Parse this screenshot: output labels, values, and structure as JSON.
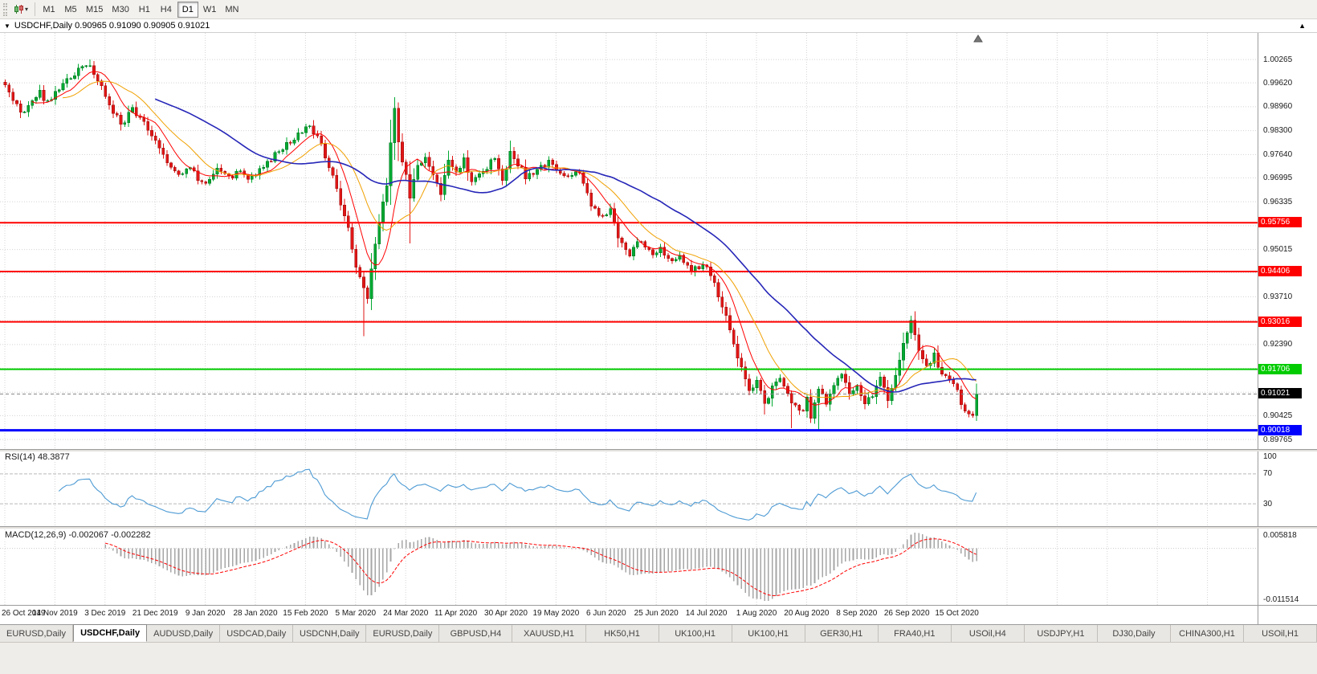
{
  "toolbar": {
    "timeframes": [
      {
        "label": "M1",
        "active": false
      },
      {
        "label": "M5",
        "active": false
      },
      {
        "label": "M15",
        "active": false
      },
      {
        "label": "M30",
        "active": false
      },
      {
        "label": "H1",
        "active": false
      },
      {
        "label": "H4",
        "active": false
      },
      {
        "label": "D1",
        "active": true
      },
      {
        "label": "W1",
        "active": false
      },
      {
        "label": "MN",
        "active": false
      }
    ]
  },
  "chart": {
    "symbol": "USDCHF",
    "period": "Daily",
    "info_line": "USDCHF,Daily 0.90965 0.91090 0.90905 0.91021",
    "ohlc": {
      "open": "0.90965",
      "high": "0.91090",
      "low": "0.90905",
      "close": "0.91021"
    }
  },
  "chart_data": {
    "type": "candlestick",
    "symbol": "USDCHF",
    "timeframe": "Daily",
    "bars": 253,
    "price_range": {
      "min": 0.895,
      "max": 1.01
    },
    "price_axis_labels": [
      "1.00265",
      "0.99620",
      "0.98960",
      "0.98300",
      "0.97640",
      "0.96995",
      "0.96335",
      "0.95015",
      "0.93710",
      "0.92390",
      "0.90425",
      "0.89765"
    ],
    "grid_prices": [
      1.00265,
      0.9962,
      0.9896,
      0.983,
      0.9764,
      0.96995,
      0.96335,
      0.95675,
      0.95015,
      0.9437,
      0.9371,
      0.9305,
      0.9239,
      0.9173,
      0.9107,
      0.90425,
      0.89765
    ],
    "x_labels": [
      "26 Oct 2019",
      "14 Nov 2019",
      "3 Dec 2019",
      "21 Dec 2019",
      "9 Jan 2020",
      "28 Jan 2020",
      "15 Feb 2020",
      "5 Mar 2020",
      "24 Mar 2020",
      "11 Apr 2020",
      "30 Apr 2020",
      "19 May 2020",
      "6 Jun 2020",
      "25 Jun 2020",
      "14 Jul 2020",
      "1 Aug 2020",
      "20 Aug 2020",
      "8 Sep 2020",
      "26 Sep 2020",
      "15 Oct 2020"
    ],
    "x_label_step": 13,
    "close_anchors": [
      [
        0,
        0.995
      ],
      [
        2,
        0.992
      ],
      [
        4,
        0.9875
      ],
      [
        6,
        0.9895
      ],
      [
        9,
        0.9935
      ],
      [
        11,
        0.9905
      ],
      [
        13,
        0.9935
      ],
      [
        16,
        0.9965
      ],
      [
        19,
        1.0
      ],
      [
        22,
        1.001
      ],
      [
        24,
        0.9975
      ],
      [
        26,
        0.993
      ],
      [
        28,
        0.9885
      ],
      [
        30,
        0.9845
      ],
      [
        33,
        0.989
      ],
      [
        36,
        0.985
      ],
      [
        39,
        0.9805
      ],
      [
        42,
        0.9745
      ],
      [
        45,
        0.9705
      ],
      [
        48,
        0.9725
      ],
      [
        50,
        0.9695
      ],
      [
        52,
        0.968
      ],
      [
        55,
        0.9725
      ],
      [
        58,
        0.97
      ],
      [
        61,
        0.972
      ],
      [
        63,
        0.969
      ],
      [
        65,
        0.971
      ],
      [
        68,
        0.9745
      ],
      [
        71,
        0.977
      ],
      [
        74,
        0.98
      ],
      [
        77,
        0.983
      ],
      [
        79,
        0.9845
      ],
      [
        81,
        0.9815
      ],
      [
        83,
        0.976
      ],
      [
        85,
        0.9705
      ],
      [
        87,
        0.963
      ],
      [
        89,
        0.9555
      ],
      [
        91,
        0.9455
      ],
      [
        93,
        0.939
      ],
      [
        94,
        0.9372
      ],
      [
        95,
        0.9455
      ],
      [
        97,
        0.9575
      ],
      [
        99,
        0.968
      ],
      [
        100,
        0.98
      ],
      [
        101,
        0.9885
      ],
      [
        102,
        0.9795
      ],
      [
        104,
        0.9705
      ],
      [
        105,
        0.964
      ],
      [
        107,
        0.9735
      ],
      [
        109,
        0.9762
      ],
      [
        111,
        0.9705
      ],
      [
        113,
        0.9662
      ],
      [
        115,
        0.9752
      ],
      [
        117,
        0.9722
      ],
      [
        119,
        0.9748
      ],
      [
        121,
        0.9682
      ],
      [
        124,
        0.9712
      ],
      [
        127,
        0.9758
      ],
      [
        129,
        0.9692
      ],
      [
        131,
        0.9768
      ],
      [
        133,
        0.9738
      ],
      [
        135,
        0.9702
      ],
      [
        138,
        0.9722
      ],
      [
        141,
        0.9742
      ],
      [
        143,
        0.9722
      ],
      [
        146,
        0.9702
      ],
      [
        149,
        0.9715
      ],
      [
        152,
        0.9628
      ],
      [
        155,
        0.9592
      ],
      [
        157,
        0.9618
      ],
      [
        159,
        0.9535
      ],
      [
        162,
        0.9492
      ],
      [
        165,
        0.9528
      ],
      [
        168,
        0.9482
      ],
      [
        170,
        0.9505
      ],
      [
        172,
        0.9472
      ],
      [
        175,
        0.9482
      ],
      [
        178,
        0.9442
      ],
      [
        181,
        0.946
      ],
      [
        183,
        0.9432
      ],
      [
        185,
        0.9378
      ],
      [
        187,
        0.931
      ],
      [
        189,
        0.924
      ],
      [
        191,
        0.917
      ],
      [
        193,
        0.9118
      ],
      [
        195,
        0.9132
      ],
      [
        197,
        0.9078
      ],
      [
        199,
        0.9118
      ],
      [
        201,
        0.9148
      ],
      [
        203,
        0.9098
      ],
      [
        205,
        0.9068
      ],
      [
        207,
        0.9048
      ],
      [
        208,
        0.9088
      ],
      [
        209,
        0.9038
      ],
      [
        211,
        0.9108
      ],
      [
        213,
        0.9082
      ],
      [
        215,
        0.9128
      ],
      [
        217,
        0.9162
      ],
      [
        219,
        0.9098
      ],
      [
        221,
        0.9118
      ],
      [
        223,
        0.9082
      ],
      [
        225,
        0.9098
      ],
      [
        227,
        0.9148
      ],
      [
        229,
        0.9092
      ],
      [
        231,
        0.9158
      ],
      [
        233,
        0.9242
      ],
      [
        235,
        0.9298
      ],
      [
        237,
        0.9228
      ],
      [
        239,
        0.9178
      ],
      [
        241,
        0.9212
      ],
      [
        243,
        0.9158
      ],
      [
        245,
        0.9146
      ],
      [
        247,
        0.9106
      ],
      [
        249,
        0.9056
      ],
      [
        251,
        0.9044
      ],
      [
        252,
        0.9102
      ]
    ],
    "wick_events": [
      {
        "i": 22,
        "high": 1.00265
      },
      {
        "i": 93,
        "low": 0.9262
      },
      {
        "i": 101,
        "high": 0.9905
      },
      {
        "i": 105,
        "low": 0.9518
      },
      {
        "i": 197,
        "low": 0.9046
      },
      {
        "i": 204,
        "low": 0.9008
      },
      {
        "i": 211,
        "low": 0.9002
      },
      {
        "i": 235,
        "high": 0.9312
      },
      {
        "i": 250,
        "low": 0.9038
      }
    ],
    "candle_colors": {
      "up_fill": "#00a832",
      "up_stroke": "#00701f",
      "down_fill": "#e01616",
      "down_stroke": "#981010"
    },
    "hlines": [
      {
        "price": 0.95756,
        "label": "0.95756",
        "color": "#ff0000",
        "width": 2
      },
      {
        "price": 0.94406,
        "label": "0.94406",
        "color": "#ff0000",
        "width": 2
      },
      {
        "price": 0.93016,
        "label": "0.93016",
        "color": "#ff0000",
        "width": 2
      },
      {
        "price": 0.91706,
        "label": "0.91706",
        "color": "#00cc00",
        "width": 2
      },
      {
        "price": 0.90018,
        "label": "0.90018",
        "color": "#0000ff",
        "width": 3
      }
    ],
    "current_price": {
      "price": 0.91021,
      "label": "0.91021",
      "badge_color": "#000000"
    },
    "moving_averages": [
      {
        "period": 8,
        "color": "#ff0000",
        "width": 1
      },
      {
        "period": 16,
        "color": "#f0a000",
        "width": 1
      },
      {
        "period": 40,
        "color": "#2626b8",
        "width": 1.6
      }
    ],
    "indicators": {
      "rsi": {
        "label": "RSI(14) 48.3877",
        "period": 14,
        "value": 48.3877,
        "levels": [
          70,
          30
        ],
        "axis_labels": [
          "100",
          "70",
          "30"
        ],
        "color": "#4e9bd4"
      },
      "macd": {
        "label": "MACD(12,26,9) -0.002067 -0.002282",
        "fast": 12,
        "slow": 26,
        "signal": 9,
        "macd_value": -0.002067,
        "signal_value": -0.002282,
        "axis_labels": [
          "0.005818",
          "-0.011514"
        ],
        "histogram_color": "#a6a6a6",
        "signal_color": "#ff0000"
      }
    }
  },
  "tabs": [
    {
      "label": "EURUSD,Daily",
      "active": false
    },
    {
      "label": "USDCHF,Daily",
      "active": true
    },
    {
      "label": "AUDUSD,Daily",
      "active": false
    },
    {
      "label": "USDCAD,Daily",
      "active": false
    },
    {
      "label": "USDCNH,Daily",
      "active": false
    },
    {
      "label": "EURUSD,Daily",
      "active": false
    },
    {
      "label": "GBPUSD,H4",
      "active": false
    },
    {
      "label": "XAUUSD,H1",
      "active": false
    },
    {
      "label": "HK50,H1",
      "active": false
    },
    {
      "label": "UK100,H1",
      "active": false
    },
    {
      "label": "UK100,H1",
      "active": false
    },
    {
      "label": "GER30,H1",
      "active": false
    },
    {
      "label": "FRA40,H1",
      "active": false
    },
    {
      "label": "USOil,H4",
      "active": false
    },
    {
      "label": "USDJPY,H1",
      "active": false
    },
    {
      "label": "DJ30,Daily",
      "active": false
    },
    {
      "label": "CHINA300,H1",
      "active": false
    },
    {
      "label": "USOil,H1",
      "active": false
    }
  ]
}
